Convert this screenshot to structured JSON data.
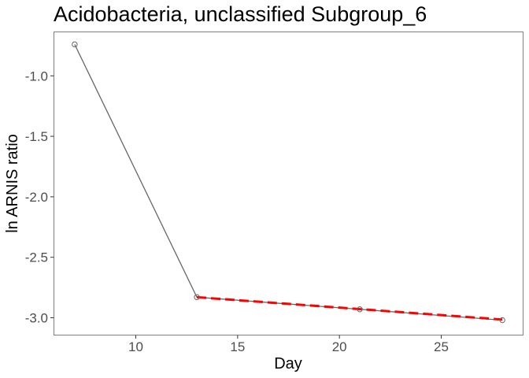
{
  "chart_data": {
    "type": "line",
    "title": "Acidobacteria, unclassified Subgroup_6",
    "xlabel": "Day",
    "ylabel": "ln ARNIS ratio",
    "xlim": [
      6.0,
      29.0
    ],
    "ylim": [
      -3.14,
      -0.64
    ],
    "x_ticks": [
      10,
      15,
      20,
      25
    ],
    "y_ticks": [
      -1.0,
      -1.5,
      -2.0,
      -2.5,
      -3.0
    ],
    "x_tick_labels": [
      "10",
      "15",
      "20",
      "25"
    ],
    "y_tick_labels": [
      "-1.0",
      "-1.5",
      "-2.0",
      "-2.5",
      "-3.0"
    ],
    "grid": false,
    "series": [
      {
        "x": [
          7,
          13,
          21,
          28
        ],
        "y": [
          -0.74,
          -2.83,
          -2.93,
          -3.02
        ],
        "line_color": "#666666",
        "marker": "open-circle",
        "marker_color": "#666666"
      }
    ],
    "fit_line": {
      "x": [
        13,
        28
      ],
      "y": [
        -2.83,
        -3.015
      ],
      "color": "#ff0000",
      "style": "dashed"
    }
  }
}
